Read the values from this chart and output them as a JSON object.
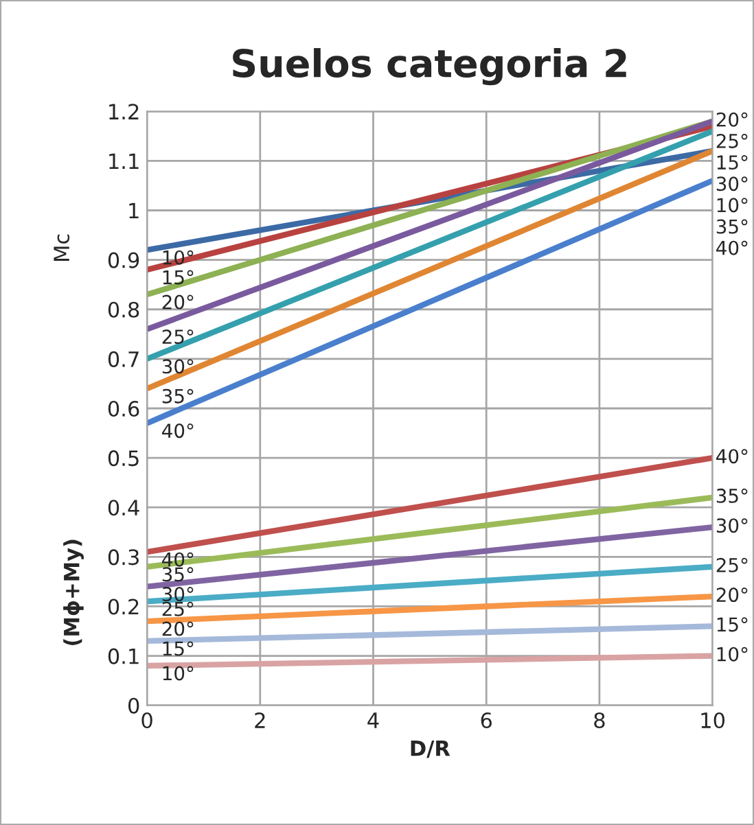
{
  "chart_data": {
    "type": "line",
    "title": "Suelos categoria 2",
    "xlabel": "D/R",
    "ylabel": "Mc",
    "annotations": [
      "(Mϕ+My)"
    ],
    "x": [
      0,
      10
    ],
    "xlim": [
      0,
      10
    ],
    "xticks": [
      0,
      2,
      4,
      6,
      8,
      10
    ],
    "ylim": [
      0,
      1.2
    ],
    "yticks": [
      0,
      0.1,
      0.2,
      0.3,
      0.4,
      0.5,
      0.6,
      0.7,
      0.8,
      0.9,
      1,
      1.1,
      1.2
    ],
    "grid": true,
    "legend": false,
    "marker": "none",
    "line_style": "solid",
    "series": [
      {
        "name": "10°",
        "color": "#3c6aa5",
        "values": [
          0.92,
          1.12
        ]
      },
      {
        "name": "15°",
        "color": "#b84240",
        "values": [
          0.88,
          1.17
        ]
      },
      {
        "name": "20°",
        "color": "#8db153",
        "values": [
          0.83,
          1.18
        ]
      },
      {
        "name": "25°",
        "color": "#7a5a9e",
        "values": [
          0.76,
          1.18
        ]
      },
      {
        "name": "30°",
        "color": "#35a0ad",
        "values": [
          0.7,
          1.16
        ]
      },
      {
        "name": "35°",
        "color": "#e08632",
        "values": [
          0.64,
          1.12
        ]
      },
      {
        "name": "40°",
        "color": "#4a7fcd",
        "values": [
          0.57,
          1.06
        ]
      },
      {
        "name": "40°",
        "color": "#c0504d",
        "values": [
          0.31,
          0.5
        ]
      },
      {
        "name": "35°",
        "color": "#9bbb59",
        "values": [
          0.28,
          0.42
        ]
      },
      {
        "name": "30°",
        "color": "#8064a2",
        "values": [
          0.24,
          0.36
        ]
      },
      {
        "name": "25°",
        "color": "#4bacc6",
        "values": [
          0.21,
          0.28
        ]
      },
      {
        "name": "20°",
        "color": "#f79646",
        "values": [
          0.17,
          0.22
        ]
      },
      {
        "name": "15°",
        "color": "#a5b9da",
        "values": [
          0.13,
          0.16
        ]
      },
      {
        "name": "10°",
        "color": "#d9a3a3",
        "values": [
          0.08,
          0.1
        ]
      }
    ]
  }
}
